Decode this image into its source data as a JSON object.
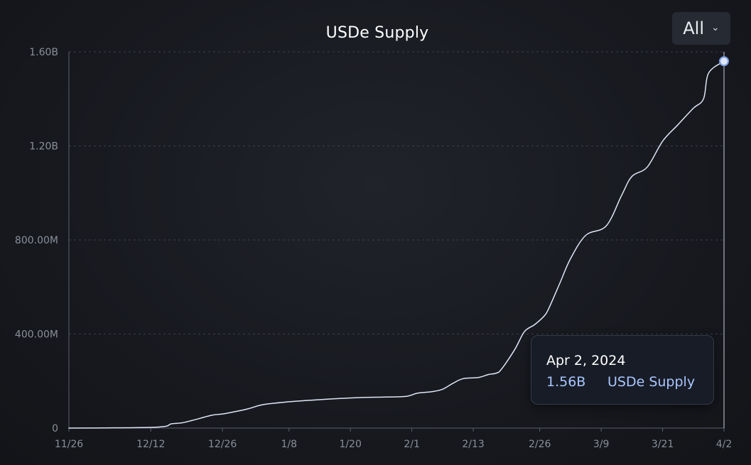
{
  "chart_data": {
    "type": "line",
    "title": "USDe Supply",
    "series": [
      {
        "name": "USDe Supply",
        "color": "#dfe6f5",
        "points": [
          [
            "2023-11-26",
            0
          ],
          [
            "2023-12-05",
            1
          ],
          [
            "2023-12-12",
            3
          ],
          [
            "2023-12-15",
            8
          ],
          [
            "2023-12-16",
            18
          ],
          [
            "2023-12-18",
            22
          ],
          [
            "2023-12-20",
            32
          ],
          [
            "2023-12-24",
            55
          ],
          [
            "2023-12-26",
            60
          ],
          [
            "2023-12-28",
            68
          ],
          [
            "2023-12-31",
            82
          ],
          [
            "2024-01-03",
            100
          ],
          [
            "2024-01-08",
            112
          ],
          [
            "2024-01-12",
            118
          ],
          [
            "2024-01-17",
            125
          ],
          [
            "2024-01-22",
            130
          ],
          [
            "2024-01-27",
            132
          ],
          [
            "2024-01-31",
            135
          ],
          [
            "2024-02-02",
            148
          ],
          [
            "2024-02-05",
            155
          ],
          [
            "2024-02-07",
            165
          ],
          [
            "2024-02-09",
            190
          ],
          [
            "2024-02-11",
            210
          ],
          [
            "2024-02-14",
            215
          ],
          [
            "2024-02-16",
            228
          ],
          [
            "2024-02-18",
            238
          ],
          [
            "2024-02-21",
            330
          ],
          [
            "2024-02-23",
            410
          ],
          [
            "2024-02-25",
            440
          ],
          [
            "2024-02-27",
            480
          ],
          [
            "2024-02-28",
            520
          ],
          [
            "2024-03-01",
            620
          ],
          [
            "2024-03-03",
            720
          ],
          [
            "2024-03-06",
            820
          ],
          [
            "2024-03-10",
            860
          ],
          [
            "2024-03-13",
            990
          ],
          [
            "2024-03-15",
            1070
          ],
          [
            "2024-03-18",
            1110
          ],
          [
            "2024-03-21",
            1220
          ],
          [
            "2024-03-24",
            1290
          ],
          [
            "2024-03-27",
            1360
          ],
          [
            "2024-03-29",
            1400
          ],
          [
            "2024-03-30",
            1510
          ],
          [
            "2024-04-02",
            1560
          ]
        ]
      }
    ],
    "x_ticks": [
      "11/26",
      "12/12",
      "12/26",
      "1/8",
      "1/20",
      "2/1",
      "2/13",
      "2/26",
      "3/9",
      "3/21",
      "4/2"
    ],
    "x_tick_dates": [
      "2023-11-26",
      "2023-12-12",
      "2023-12-26",
      "2024-01-08",
      "2024-01-20",
      "2024-02-01",
      "2024-02-13",
      "2024-02-26",
      "2024-03-09",
      "2024-03-21",
      "2024-04-02"
    ],
    "xlim": [
      "2023-11-26",
      "2024-04-02"
    ],
    "y_unit": "millions",
    "y_ticks": [
      0,
      400,
      800,
      1200,
      1600
    ],
    "y_tick_labels": [
      "0",
      "400.00M",
      "800.00M",
      "1.20B",
      "1.60B"
    ],
    "ylim": [
      0,
      1600
    ],
    "grid": {
      "horizontal": true,
      "vertical": false,
      "style": "dashed"
    },
    "legend": "none",
    "highlight": {
      "date": "2024-04-02",
      "value": 1560
    },
    "tooltip": {
      "date": "Apr 2, 2024",
      "value": "1.56B",
      "series_name": "USDe Supply"
    }
  },
  "controls": {
    "range_selected": "All"
  }
}
